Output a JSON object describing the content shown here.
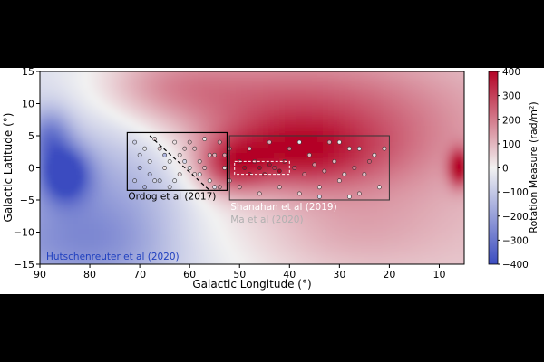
{
  "chart_data": {
    "type": "heatmap",
    "xlabel": "Galactic Longitude (°)",
    "ylabel": "Galactic Latitude (°)",
    "xlim": [
      90,
      5
    ],
    "ylim": [
      -15,
      15
    ],
    "x_ticks": [
      "90",
      "80",
      "70",
      "60",
      "50",
      "40",
      "30",
      "20",
      "10"
    ],
    "x_tick_values": [
      90,
      80,
      70,
      60,
      50,
      40,
      30,
      20,
      10
    ],
    "y_ticks": [
      "15",
      "10",
      "5",
      "0",
      "−5",
      "−10",
      "−15"
    ],
    "y_tick_values": [
      15,
      10,
      5,
      0,
      -5,
      -10,
      -15
    ],
    "colorbar": {
      "label": "Rotation Measure (rad/m²)",
      "range": [
        -400,
        400
      ],
      "ticks": [
        "400",
        "300",
        "200",
        "100",
        "0",
        "−100",
        "−200",
        "−300",
        "−400"
      ],
      "tick_values": [
        400,
        300,
        200,
        100,
        0,
        -100,
        -200,
        -300,
        -400
      ],
      "cmap": [
        "#3b4cc0",
        "#f2f2f2",
        "#b40426"
      ]
    },
    "regions": [
      {
        "label": "Ordog et al (2017)",
        "lon": [
          72.5,
          52.5
        ],
        "lat": [
          -3.5,
          5.5
        ],
        "label_color": "#000000"
      },
      {
        "label": "Shanahan et al (2019)",
        "lon": [
          52,
          20
        ],
        "lat": [
          -5,
          5
        ],
        "label_color": "#ffffff"
      },
      {
        "label": "Ma et al (2020)",
        "lon": [
          52,
          20
        ],
        "lat": [
          -5,
          5
        ],
        "label_color": "#b0b0b0"
      }
    ],
    "background_label": {
      "text": "Hutschenreuter et al (2020)",
      "color": "#1f3fbf"
    },
    "map_features": [
      {
        "lon": 85,
        "lat": -1,
        "rm": -350,
        "sx": 3.5,
        "sy": 3
      },
      {
        "lon": 88,
        "lat": 5,
        "rm": -200,
        "sx": 3,
        "sy": 3
      },
      {
        "lon": 75,
        "lat": -5,
        "rm": -150,
        "sx": 15,
        "sy": 10
      },
      {
        "lon": 80,
        "lat": -12,
        "rm": -120,
        "sx": 20,
        "sy": 5
      },
      {
        "lon": 45,
        "lat": 10,
        "rm": 200,
        "sx": 18,
        "sy": 6
      },
      {
        "lon": 40,
        "lat": 2,
        "rm": 250,
        "sx": 12,
        "sy": 4
      },
      {
        "lon": 20,
        "lat": 5,
        "rm": 120,
        "sx": 15,
        "sy": 8
      },
      {
        "lon": 6,
        "lat": 0,
        "rm": 300,
        "sx": 1.5,
        "sy": 2
      },
      {
        "lon": 60,
        "lat": -10,
        "rm": 80,
        "sx": 10,
        "sy": 5
      },
      {
        "lon": 30,
        "lat": -10,
        "rm": 80,
        "sx": 15,
        "sy": 5
      },
      {
        "lon": 65,
        "lat": 13,
        "rm": 120,
        "sx": 10,
        "sy": 4
      },
      {
        "lon": 52,
        "lat": 0,
        "rm": 200,
        "sx": 5,
        "sy": 3
      }
    ],
    "points": [
      [
        71,
        4,
        -80
      ],
      [
        69,
        3,
        -20
      ],
      [
        67,
        4.5,
        50
      ],
      [
        65,
        2,
        -150
      ],
      [
        63,
        4,
        30
      ],
      [
        61,
        1,
        -60
      ],
      [
        59,
        3,
        90
      ],
      [
        57,
        4.5,
        20
      ],
      [
        55,
        2,
        120
      ],
      [
        53,
        0,
        60
      ],
      [
        70,
        0,
        -180
      ],
      [
        68,
        -1,
        -140
      ],
      [
        66,
        -2,
        -100
      ],
      [
        64,
        -3,
        -60
      ],
      [
        62,
        -1,
        40
      ],
      [
        60,
        0,
        -30
      ],
      [
        58,
        1,
        70
      ],
      [
        56,
        -2,
        10
      ],
      [
        54,
        -3,
        150
      ],
      [
        52,
        3,
        200
      ],
      [
        71,
        -2,
        -120
      ],
      [
        70,
        2,
        -90
      ],
      [
        68,
        1,
        -40
      ],
      [
        66,
        3,
        60
      ],
      [
        64,
        1,
        -10
      ],
      [
        62,
        2,
        40
      ],
      [
        60,
        4,
        110
      ],
      [
        58,
        -1,
        -20
      ],
      [
        56,
        2,
        80
      ],
      [
        54,
        4,
        130
      ],
      [
        69,
        -3,
        -160
      ],
      [
        67,
        -2,
        -70
      ],
      [
        65,
        0,
        20
      ],
      [
        63,
        -2,
        -30
      ],
      [
        61,
        3,
        80
      ],
      [
        59,
        -1,
        50
      ],
      [
        57,
        0,
        100
      ],
      [
        55,
        -3,
        -40
      ],
      [
        53,
        2,
        160
      ],
      [
        52,
        -2,
        90
      ],
      [
        50,
        1,
        350
      ],
      [
        49,
        0,
        400
      ],
      [
        48,
        -1,
        380
      ],
      [
        47,
        1,
        300
      ],
      [
        46,
        0,
        420
      ],
      [
        45,
        -1,
        360
      ],
      [
        44,
        0.5,
        390
      ],
      [
        43,
        0,
        320
      ],
      [
        42,
        -0.5,
        400
      ],
      [
        41,
        1,
        350
      ],
      [
        50,
        -3,
        150
      ],
      [
        48,
        3,
        100
      ],
      [
        46,
        -4,
        80
      ],
      [
        44,
        4,
        120
      ],
      [
        42,
        -3,
        90
      ],
      [
        40,
        3,
        200
      ],
      [
        38,
        -4,
        60
      ],
      [
        36,
        2,
        110
      ],
      [
        34,
        -3,
        50
      ],
      [
        32,
        4,
        140
      ],
      [
        30,
        -2,
        80
      ],
      [
        28,
        3,
        30
      ],
      [
        26,
        -4,
        70
      ],
      [
        24,
        1,
        250
      ],
      [
        22,
        -3,
        20
      ],
      [
        21,
        3,
        60
      ],
      [
        39,
        0,
        280
      ],
      [
        37,
        -1,
        220
      ],
      [
        35,
        0.5,
        180
      ],
      [
        33,
        -0.5,
        150
      ],
      [
        31,
        1,
        100
      ],
      [
        29,
        -1,
        60
      ],
      [
        27,
        0,
        200
      ],
      [
        25,
        -1,
        90
      ],
      [
        23,
        2,
        40
      ],
      [
        38,
        4,
        -20
      ],
      [
        30,
        4,
        10
      ],
      [
        26,
        3,
        -40
      ],
      [
        34,
        -4.5,
        -60
      ],
      [
        28,
        -4.5,
        -10
      ]
    ]
  }
}
